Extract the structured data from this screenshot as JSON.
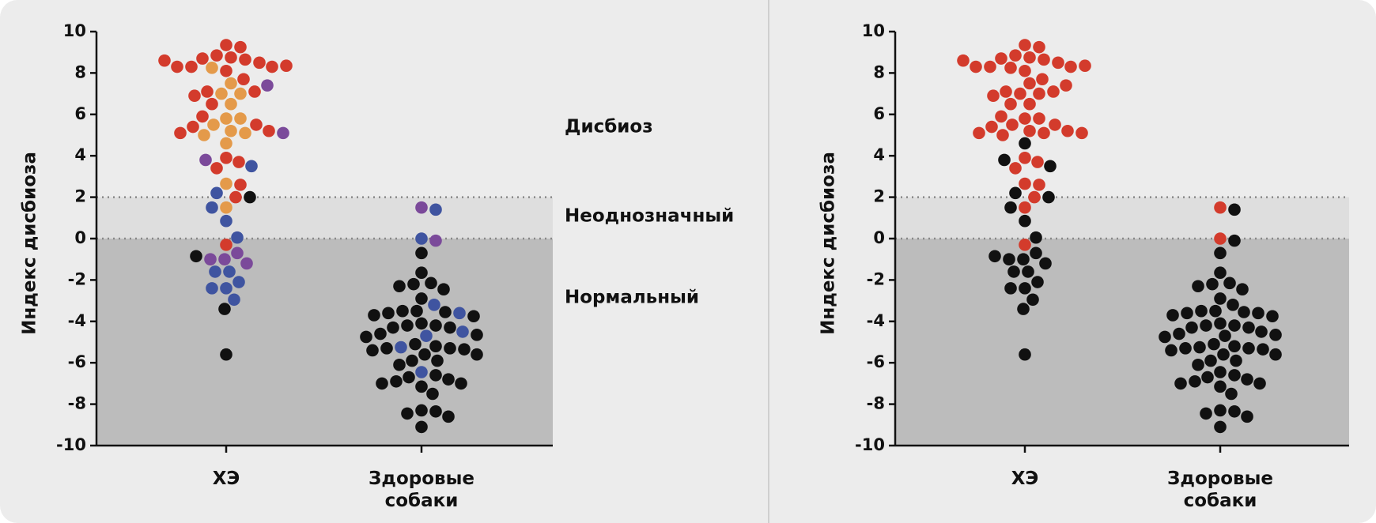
{
  "chart_data": [
    {
      "type": "beeswarm",
      "ylabel": "Индекс дисбиоза",
      "categories": [
        "ХЭ",
        "Здоровые собаки"
      ],
      "ylim": [
        -10,
        10
      ],
      "yticks": [
        -10,
        -8,
        -6,
        -4,
        -2,
        0,
        2,
        4,
        6,
        8,
        10
      ],
      "zones": [
        {
          "label": "Дисбиоз",
          "range": [
            2,
            10
          ]
        },
        {
          "label": "Неоднозначный",
          "range": [
            0,
            2
          ],
          "fill": "#dedede"
        },
        {
          "label": "Нормальный",
          "range": [
            -10,
            0
          ],
          "fill": "#bcbcbc"
        }
      ],
      "groups": [
        {
          "values": [
            9.35,
            9.25,
            8.85,
            8.75,
            8.65,
            8.7,
            8.5,
            8.3,
            8.3,
            8.3,
            8.1,
            8.35,
            8.6,
            8.25,
            7.5,
            7.0,
            7.0,
            6.5,
            5.8,
            5.8,
            5.5,
            5.2,
            5.1,
            5.0,
            4.6,
            2.65,
            1.5,
            7.7,
            7.1,
            7.1,
            6.9,
            6.5,
            5.9,
            5.5,
            5.4,
            5.2,
            5.1,
            3.9,
            3.7,
            3.4,
            2.6,
            2.0,
            -0.3,
            7.4,
            5.1,
            3.8,
            -0.7,
            -1.0,
            -1.0,
            -1.2,
            3.5,
            2.2,
            1.5,
            0.85,
            0.05,
            -1.6,
            -1.6,
            -2.1,
            -2.4,
            -2.4,
            -2.95,
            2.0,
            -0.85,
            -3.4,
            -5.6
          ],
          "colors": [
            "#d33b2c",
            "#d33b2c",
            "#d33b2c",
            "#d33b2c",
            "#d33b2c",
            "#d33b2c",
            "#d33b2c",
            "#d33b2c",
            "#d33b2c",
            "#d33b2c",
            "#d33b2c",
            "#d33b2c",
            "#d33b2c",
            "#e49a4a",
            "#e49a4a",
            "#e49a4a",
            "#e49a4a",
            "#e49a4a",
            "#e49a4a",
            "#e49a4a",
            "#e49a4a",
            "#e49a4a",
            "#e49a4a",
            "#e49a4a",
            "#e49a4a",
            "#e49a4a",
            "#e49a4a",
            "#d33b2c",
            "#d33b2c",
            "#d33b2c",
            "#d33b2c",
            "#d33b2c",
            "#d33b2c",
            "#d33b2c",
            "#d33b2c",
            "#d33b2c",
            "#d33b2c",
            "#d33b2c",
            "#d33b2c",
            "#d33b2c",
            "#d33b2c",
            "#d33b2c",
            "#d33b2c",
            "#7b4a9a",
            "#7b4a9a",
            "#7b4a9a",
            "#7b4a9a",
            "#7b4a9a",
            "#7b4a9a",
            "#7b4a9a",
            "#3f54a0",
            "#3f54a0",
            "#3f54a0",
            "#3f54a0",
            "#3f54a0",
            "#3f54a0",
            "#3f54a0",
            "#3f54a0",
            "#3f54a0",
            "#3f54a0",
            "#3f54a0",
            "#111111",
            "#111111",
            "#111111",
            "#111111"
          ]
        },
        {
          "values": [
            1.5,
            1.4,
            0.0,
            -0.1,
            -0.7,
            -1.65,
            -2.15,
            -2.2,
            -2.3,
            -2.45,
            -2.9,
            -3.2,
            -3.5,
            -3.5,
            -3.55,
            -3.6,
            -3.6,
            -3.7,
            -3.75,
            -4.1,
            -4.2,
            -4.2,
            -4.3,
            -4.3,
            -4.5,
            -4.6,
            -4.65,
            -4.7,
            -4.75,
            -5.1,
            -5.2,
            -5.25,
            -5.3,
            -5.3,
            -5.35,
            -5.4,
            -5.6,
            -5.6,
            -5.9,
            -5.9,
            -6.1,
            -6.45,
            -6.6,
            -6.7,
            -6.8,
            -6.9,
            -7.0,
            -7.0,
            -7.15,
            -7.5,
            -8.3,
            -8.35,
            -8.45,
            -8.6,
            -9.1
          ],
          "colors": [
            "#7b4a9a",
            "#3f54a0",
            "#3f54a0",
            "#7b4a9a",
            "#111111",
            "#111111",
            "#111111",
            "#111111",
            "#111111",
            "#111111",
            "#111111",
            "#3f54a0",
            "#111111",
            "#111111",
            "#111111",
            "#111111",
            "#3f54a0",
            "#111111",
            "#111111",
            "#111111",
            "#111111",
            "#111111",
            "#111111",
            "#111111",
            "#3f54a0",
            "#111111",
            "#111111",
            "#3f54a0",
            "#111111",
            "#111111",
            "#111111",
            "#3f54a0",
            "#111111",
            "#111111",
            "#111111",
            "#111111",
            "#111111",
            "#111111",
            "#111111",
            "#111111",
            "#111111",
            "#3f54a0",
            "#111111",
            "#111111",
            "#111111",
            "#111111",
            "#111111",
            "#111111",
            "#111111",
            "#111111",
            "#111111",
            "#111111",
            "#111111",
            "#111111",
            "#111111"
          ]
        }
      ]
    },
    {
      "type": "beeswarm",
      "ylabel": "Индекс дисбиоза",
      "categories": [
        "ХЭ",
        "Здоровые собаки"
      ],
      "ylim": [
        -10,
        10
      ],
      "yticks": [
        -10,
        -8,
        -6,
        -4,
        -2,
        0,
        2,
        4,
        6,
        8,
        10
      ],
      "zones": [
        {
          "range": [
            2,
            10
          ]
        },
        {
          "range": [
            0,
            2
          ],
          "fill": "#dedede"
        },
        {
          "range": [
            -10,
            0
          ],
          "fill": "#bcbcbc"
        }
      ],
      "groups": [
        {
          "values": [
            9.35,
            9.25,
            8.85,
            8.75,
            8.65,
            8.7,
            8.5,
            8.3,
            8.3,
            8.3,
            8.1,
            8.35,
            8.6,
            8.25,
            7.5,
            7.0,
            7.0,
            6.5,
            5.8,
            5.8,
            5.5,
            5.2,
            5.1,
            5.0,
            4.6,
            2.65,
            1.5,
            7.7,
            7.1,
            7.1,
            6.9,
            6.5,
            5.9,
            5.5,
            5.4,
            5.2,
            5.1,
            3.9,
            3.7,
            3.4,
            2.6,
            2.0,
            -0.3,
            7.4,
            5.1,
            3.8,
            -0.7,
            -1.0,
            -1.0,
            -1.2,
            3.5,
            2.2,
            1.5,
            0.85,
            0.05,
            -1.6,
            -1.6,
            -2.1,
            -2.4,
            -2.4,
            -2.95,
            2.0,
            -0.85,
            -3.4,
            -5.6
          ],
          "colors": [
            "#d33b2c",
            "#d33b2c",
            "#d33b2c",
            "#d33b2c",
            "#d33b2c",
            "#d33b2c",
            "#d33b2c",
            "#d33b2c",
            "#d33b2c",
            "#d33b2c",
            "#d33b2c",
            "#d33b2c",
            "#d33b2c",
            "#d33b2c",
            "#d33b2c",
            "#d33b2c",
            "#d33b2c",
            "#d33b2c",
            "#d33b2c",
            "#d33b2c",
            "#d33b2c",
            "#d33b2c",
            "#d33b2c",
            "#d33b2c",
            "#111111",
            "#d33b2c",
            "#d33b2c",
            "#d33b2c",
            "#d33b2c",
            "#d33b2c",
            "#d33b2c",
            "#d33b2c",
            "#d33b2c",
            "#d33b2c",
            "#d33b2c",
            "#d33b2c",
            "#d33b2c",
            "#d33b2c",
            "#d33b2c",
            "#d33b2c",
            "#d33b2c",
            "#d33b2c",
            "#d33b2c",
            "#d33b2c",
            "#d33b2c",
            "#111111",
            "#111111",
            "#111111",
            "#111111",
            "#111111",
            "#111111",
            "#111111",
            "#111111",
            "#111111",
            "#111111",
            "#111111",
            "#111111",
            "#111111",
            "#111111",
            "#111111",
            "#111111",
            "#111111",
            "#111111",
            "#111111",
            "#111111"
          ]
        },
        {
          "values": [
            1.5,
            1.4,
            0.0,
            -0.1,
            -0.7,
            -1.65,
            -2.15,
            -2.2,
            -2.3,
            -2.45,
            -2.9,
            -3.2,
            -3.5,
            -3.5,
            -3.55,
            -3.6,
            -3.6,
            -3.7,
            -3.75,
            -4.1,
            -4.2,
            -4.2,
            -4.3,
            -4.3,
            -4.5,
            -4.6,
            -4.65,
            -4.7,
            -4.75,
            -5.1,
            -5.2,
            -5.25,
            -5.3,
            -5.3,
            -5.35,
            -5.4,
            -5.6,
            -5.6,
            -5.9,
            -5.9,
            -6.1,
            -6.45,
            -6.6,
            -6.7,
            -6.8,
            -6.9,
            -7.0,
            -7.0,
            -7.15,
            -7.5,
            -8.3,
            -8.35,
            -8.45,
            -8.6,
            -9.1
          ],
          "colors": [
            "#d33b2c",
            "#111111",
            "#d33b2c",
            "#111111",
            "#111111",
            "#111111",
            "#111111",
            "#111111",
            "#111111",
            "#111111",
            "#111111",
            "#111111",
            "#111111",
            "#111111",
            "#111111",
            "#111111",
            "#111111",
            "#111111",
            "#111111",
            "#111111",
            "#111111",
            "#111111",
            "#111111",
            "#111111",
            "#111111",
            "#111111",
            "#111111",
            "#111111",
            "#111111",
            "#111111",
            "#111111",
            "#111111",
            "#111111",
            "#111111",
            "#111111",
            "#111111",
            "#111111",
            "#111111",
            "#111111",
            "#111111",
            "#111111",
            "#111111",
            "#111111",
            "#111111",
            "#111111",
            "#111111",
            "#111111",
            "#111111",
            "#111111",
            "#111111",
            "#111111",
            "#111111",
            "#111111",
            "#111111",
            "#111111"
          ]
        }
      ]
    }
  ]
}
